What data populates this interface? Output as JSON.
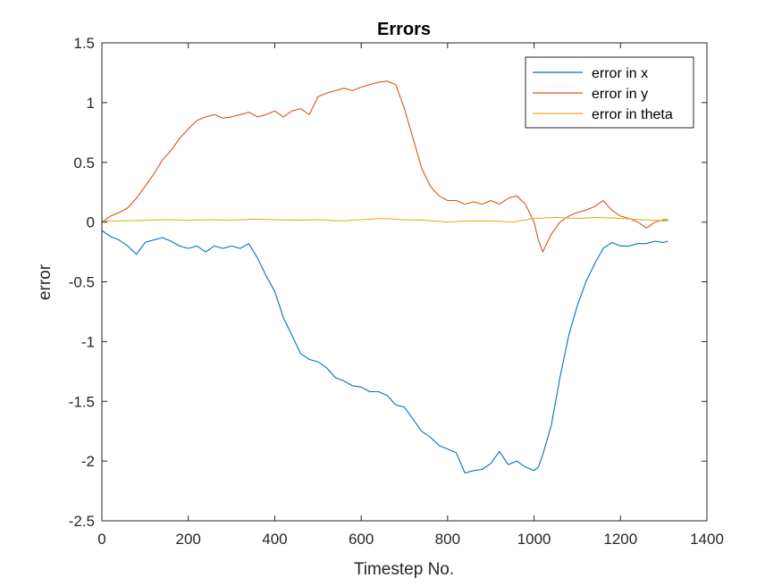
{
  "chart_data": {
    "type": "line",
    "title": "Errors",
    "xlabel": "Timestep No.",
    "ylabel": "error",
    "xlim": [
      0,
      1400
    ],
    "ylim": [
      -2.5,
      1.5
    ],
    "xticks": [
      0,
      200,
      400,
      600,
      800,
      1000,
      1200,
      1400
    ],
    "xtick_labels": [
      "0",
      "200",
      "400",
      "600",
      "800",
      "1000",
      "1200",
      "1400"
    ],
    "yticks": [
      -2.5,
      -2,
      -1.5,
      -1,
      -0.5,
      0,
      0.5,
      1,
      1.5
    ],
    "ytick_labels": [
      "-2.5",
      "-2",
      "-1.5",
      "-1",
      "-0.5",
      "0",
      "0.5",
      "1",
      "1.5"
    ],
    "grid": false,
    "legend_position": "top-right",
    "series": [
      {
        "name": "error in x",
        "color": "#0072BD",
        "x": [
          0,
          20,
          40,
          60,
          80,
          100,
          120,
          140,
          160,
          180,
          200,
          220,
          240,
          260,
          280,
          300,
          320,
          340,
          360,
          380,
          400,
          420,
          440,
          460,
          480,
          500,
          520,
          540,
          560,
          580,
          600,
          620,
          640,
          660,
          680,
          700,
          720,
          740,
          760,
          780,
          800,
          820,
          840,
          860,
          880,
          900,
          920,
          940,
          960,
          980,
          1000,
          1010,
          1020,
          1040,
          1060,
          1080,
          1100,
          1120,
          1140,
          1160,
          1180,
          1200,
          1220,
          1240,
          1260,
          1280,
          1300,
          1310
        ],
        "y": [
          -0.07,
          -0.12,
          -0.15,
          -0.2,
          -0.27,
          -0.17,
          -0.15,
          -0.13,
          -0.16,
          -0.2,
          -0.22,
          -0.2,
          -0.25,
          -0.2,
          -0.22,
          -0.2,
          -0.22,
          -0.18,
          -0.3,
          -0.45,
          -0.58,
          -0.8,
          -0.95,
          -1.1,
          -1.15,
          -1.17,
          -1.22,
          -1.3,
          -1.33,
          -1.37,
          -1.38,
          -1.42,
          -1.42,
          -1.45,
          -1.53,
          -1.55,
          -1.65,
          -1.75,
          -1.8,
          -1.87,
          -1.9,
          -1.93,
          -2.1,
          -2.08,
          -2.07,
          -2.02,
          -1.92,
          -2.03,
          -2.0,
          -2.05,
          -2.08,
          -2.05,
          -1.95,
          -1.7,
          -1.3,
          -0.95,
          -0.7,
          -0.5,
          -0.35,
          -0.22,
          -0.17,
          -0.2,
          -0.2,
          -0.18,
          -0.18,
          -0.16,
          -0.17,
          -0.16
        ]
      },
      {
        "name": "error in y",
        "color": "#D95319",
        "x": [
          0,
          20,
          40,
          60,
          80,
          100,
          120,
          140,
          160,
          180,
          200,
          220,
          240,
          260,
          280,
          300,
          320,
          340,
          360,
          380,
          400,
          420,
          440,
          460,
          480,
          500,
          520,
          540,
          560,
          580,
          600,
          620,
          640,
          660,
          680,
          700,
          720,
          740,
          760,
          780,
          800,
          820,
          840,
          860,
          880,
          900,
          920,
          940,
          960,
          980,
          1000,
          1010,
          1020,
          1040,
          1060,
          1080,
          1100,
          1120,
          1140,
          1160,
          1180,
          1200,
          1220,
          1240,
          1260,
          1280,
          1300,
          1310
        ],
        "y": [
          0.0,
          0.05,
          0.08,
          0.12,
          0.2,
          0.3,
          0.4,
          0.52,
          0.6,
          0.7,
          0.78,
          0.85,
          0.88,
          0.9,
          0.87,
          0.88,
          0.9,
          0.92,
          0.88,
          0.9,
          0.93,
          0.88,
          0.93,
          0.95,
          0.9,
          1.05,
          1.08,
          1.1,
          1.12,
          1.1,
          1.13,
          1.15,
          1.17,
          1.18,
          1.15,
          0.95,
          0.7,
          0.45,
          0.3,
          0.22,
          0.18,
          0.18,
          0.15,
          0.17,
          0.15,
          0.18,
          0.15,
          0.2,
          0.22,
          0.15,
          0.0,
          -0.15,
          -0.25,
          -0.1,
          0.0,
          0.05,
          0.08,
          0.1,
          0.13,
          0.18,
          0.1,
          0.05,
          0.03,
          0.0,
          -0.05,
          0.0,
          0.02,
          0.02
        ]
      },
      {
        "name": "error in theta",
        "color": "#EDB120",
        "x": [
          0,
          50,
          100,
          150,
          200,
          250,
          300,
          350,
          400,
          450,
          500,
          550,
          600,
          650,
          700,
          750,
          800,
          850,
          900,
          950,
          1000,
          1050,
          1100,
          1150,
          1200,
          1250,
          1310
        ],
        "y": [
          0.01,
          0.01,
          0.015,
          0.02,
          0.015,
          0.02,
          0.015,
          0.025,
          0.02,
          0.015,
          0.02,
          0.01,
          0.02,
          0.03,
          0.02,
          0.015,
          0.0,
          0.01,
          0.01,
          0.0,
          0.03,
          0.04,
          0.03,
          0.04,
          0.03,
          0.02,
          0.01
        ]
      }
    ]
  }
}
